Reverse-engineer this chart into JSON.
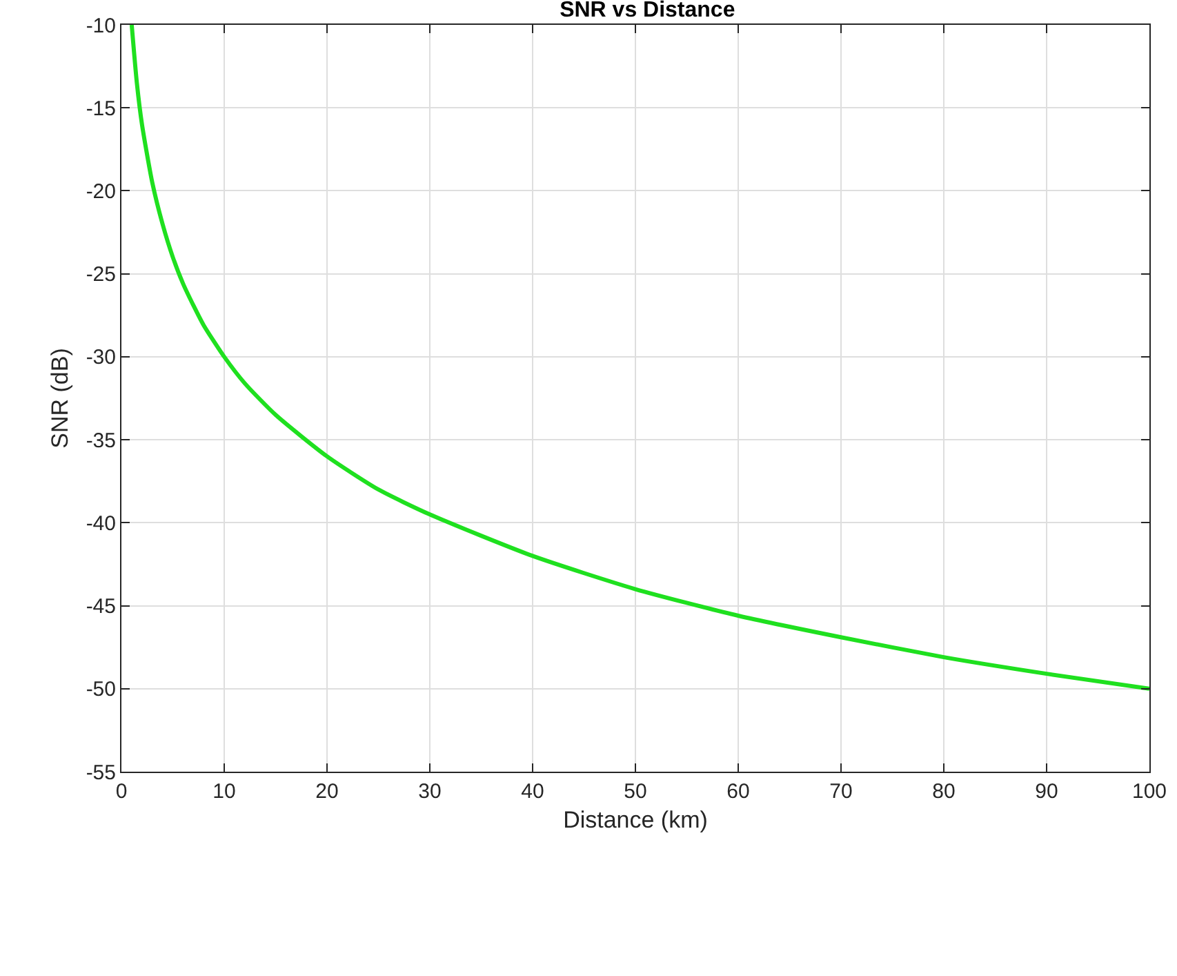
{
  "chart_data": {
    "type": "line",
    "title": "SNR vs Distance",
    "xlabel": "Distance (km)",
    "ylabel": "SNR (dB)",
    "x": [
      1,
      1.5,
      2,
      3,
      4,
      5,
      6,
      7,
      8,
      10,
      12,
      15,
      20,
      25,
      30,
      40,
      50,
      60,
      70,
      80,
      90,
      100
    ],
    "series": [
      {
        "color": "#1fe01f",
        "values": [
          -10,
          -13.5,
          -16.0,
          -19.5,
          -22.0,
          -24.0,
          -25.6,
          -26.9,
          -28.1,
          -30.0,
          -31.6,
          -33.5,
          -36.0,
          -38.0,
          -39.5,
          -42.0,
          -44.0,
          -45.6,
          -46.9,
          -48.1,
          -49.1,
          -50.0
        ]
      }
    ],
    "xlim": [
      0,
      100
    ],
    "xticks": [
      0,
      10,
      20,
      30,
      40,
      50,
      60,
      70,
      80,
      90,
      100
    ],
    "ylim": [
      -55,
      -10
    ],
    "yticks": [
      -55,
      -50,
      -45,
      -40,
      -35,
      -30,
      -25,
      -20,
      -15,
      -10
    ],
    "grid": true,
    "marker": "none",
    "line_style": "solid"
  }
}
